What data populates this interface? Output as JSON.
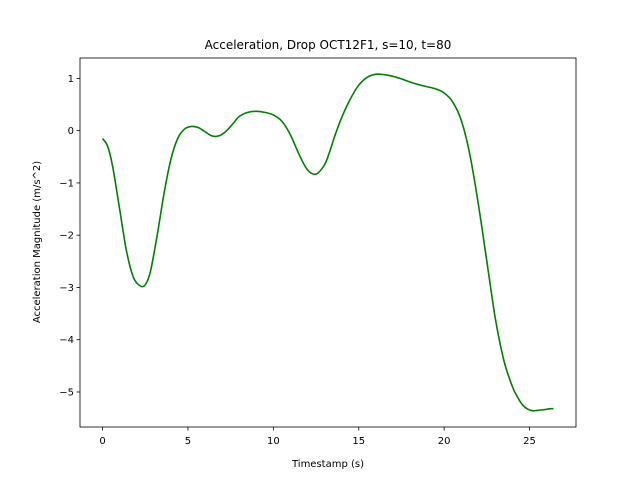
{
  "chart_data": {
    "type": "line",
    "title": "Acceleration, Drop OCT12F1, s=10, t=80",
    "xlabel": "Timestamp (s)",
    "ylabel": "Acceleration Magnitude (m/s^2)",
    "xlim": [
      -1.32,
      27.72
    ],
    "ylim": [
      -5.67,
      1.39
    ],
    "xticks": [
      0,
      5,
      10,
      15,
      20,
      25
    ],
    "yticks": [
      1,
      0,
      -1,
      -2,
      -3,
      -4,
      -5
    ],
    "xtick_labels": [
      "0",
      "5",
      "10",
      "15",
      "20",
      "25"
    ],
    "ytick_labels": [
      "1",
      "0",
      "−1",
      "−2",
      "−3",
      "−4",
      "−5"
    ],
    "grid": false,
    "series": [
      {
        "color": "#008000",
        "x": [
          0.0,
          0.3,
          0.6,
          1.0,
          1.4,
          1.8,
          2.2,
          2.5,
          2.8,
          3.2,
          3.6,
          4.0,
          4.4,
          4.8,
          5.2,
          5.6,
          6.0,
          6.4,
          6.8,
          7.2,
          7.6,
          8.0,
          8.5,
          9.0,
          9.5,
          10.0,
          10.5,
          11.0,
          11.5,
          12.0,
          12.5,
          13.0,
          13.3,
          13.6,
          14.0,
          14.5,
          15.0,
          15.5,
          16.0,
          16.5,
          17.0,
          17.5,
          18.0,
          18.5,
          19.0,
          19.5,
          20.0,
          20.5,
          21.0,
          21.5,
          22.0,
          22.5,
          23.0,
          23.5,
          24.0,
          24.3,
          24.6,
          24.9,
          25.2,
          25.5,
          25.8,
          26.0,
          26.2,
          26.4
        ],
        "y": [
          -0.15,
          -0.3,
          -0.7,
          -1.5,
          -2.3,
          -2.8,
          -2.97,
          -2.95,
          -2.7,
          -2.0,
          -1.2,
          -0.55,
          -0.15,
          0.03,
          0.08,
          0.06,
          -0.02,
          -0.1,
          -0.1,
          -0.02,
          0.12,
          0.27,
          0.35,
          0.37,
          0.35,
          0.3,
          0.18,
          -0.08,
          -0.45,
          -0.75,
          -0.83,
          -0.65,
          -0.4,
          -0.1,
          0.25,
          0.6,
          0.87,
          1.02,
          1.08,
          1.07,
          1.04,
          0.99,
          0.93,
          0.88,
          0.84,
          0.8,
          0.72,
          0.55,
          0.2,
          -0.45,
          -1.4,
          -2.5,
          -3.6,
          -4.4,
          -4.9,
          -5.1,
          -5.25,
          -5.33,
          -5.36,
          -5.35,
          -5.34,
          -5.33,
          -5.32,
          -5.32
        ]
      }
    ]
  }
}
